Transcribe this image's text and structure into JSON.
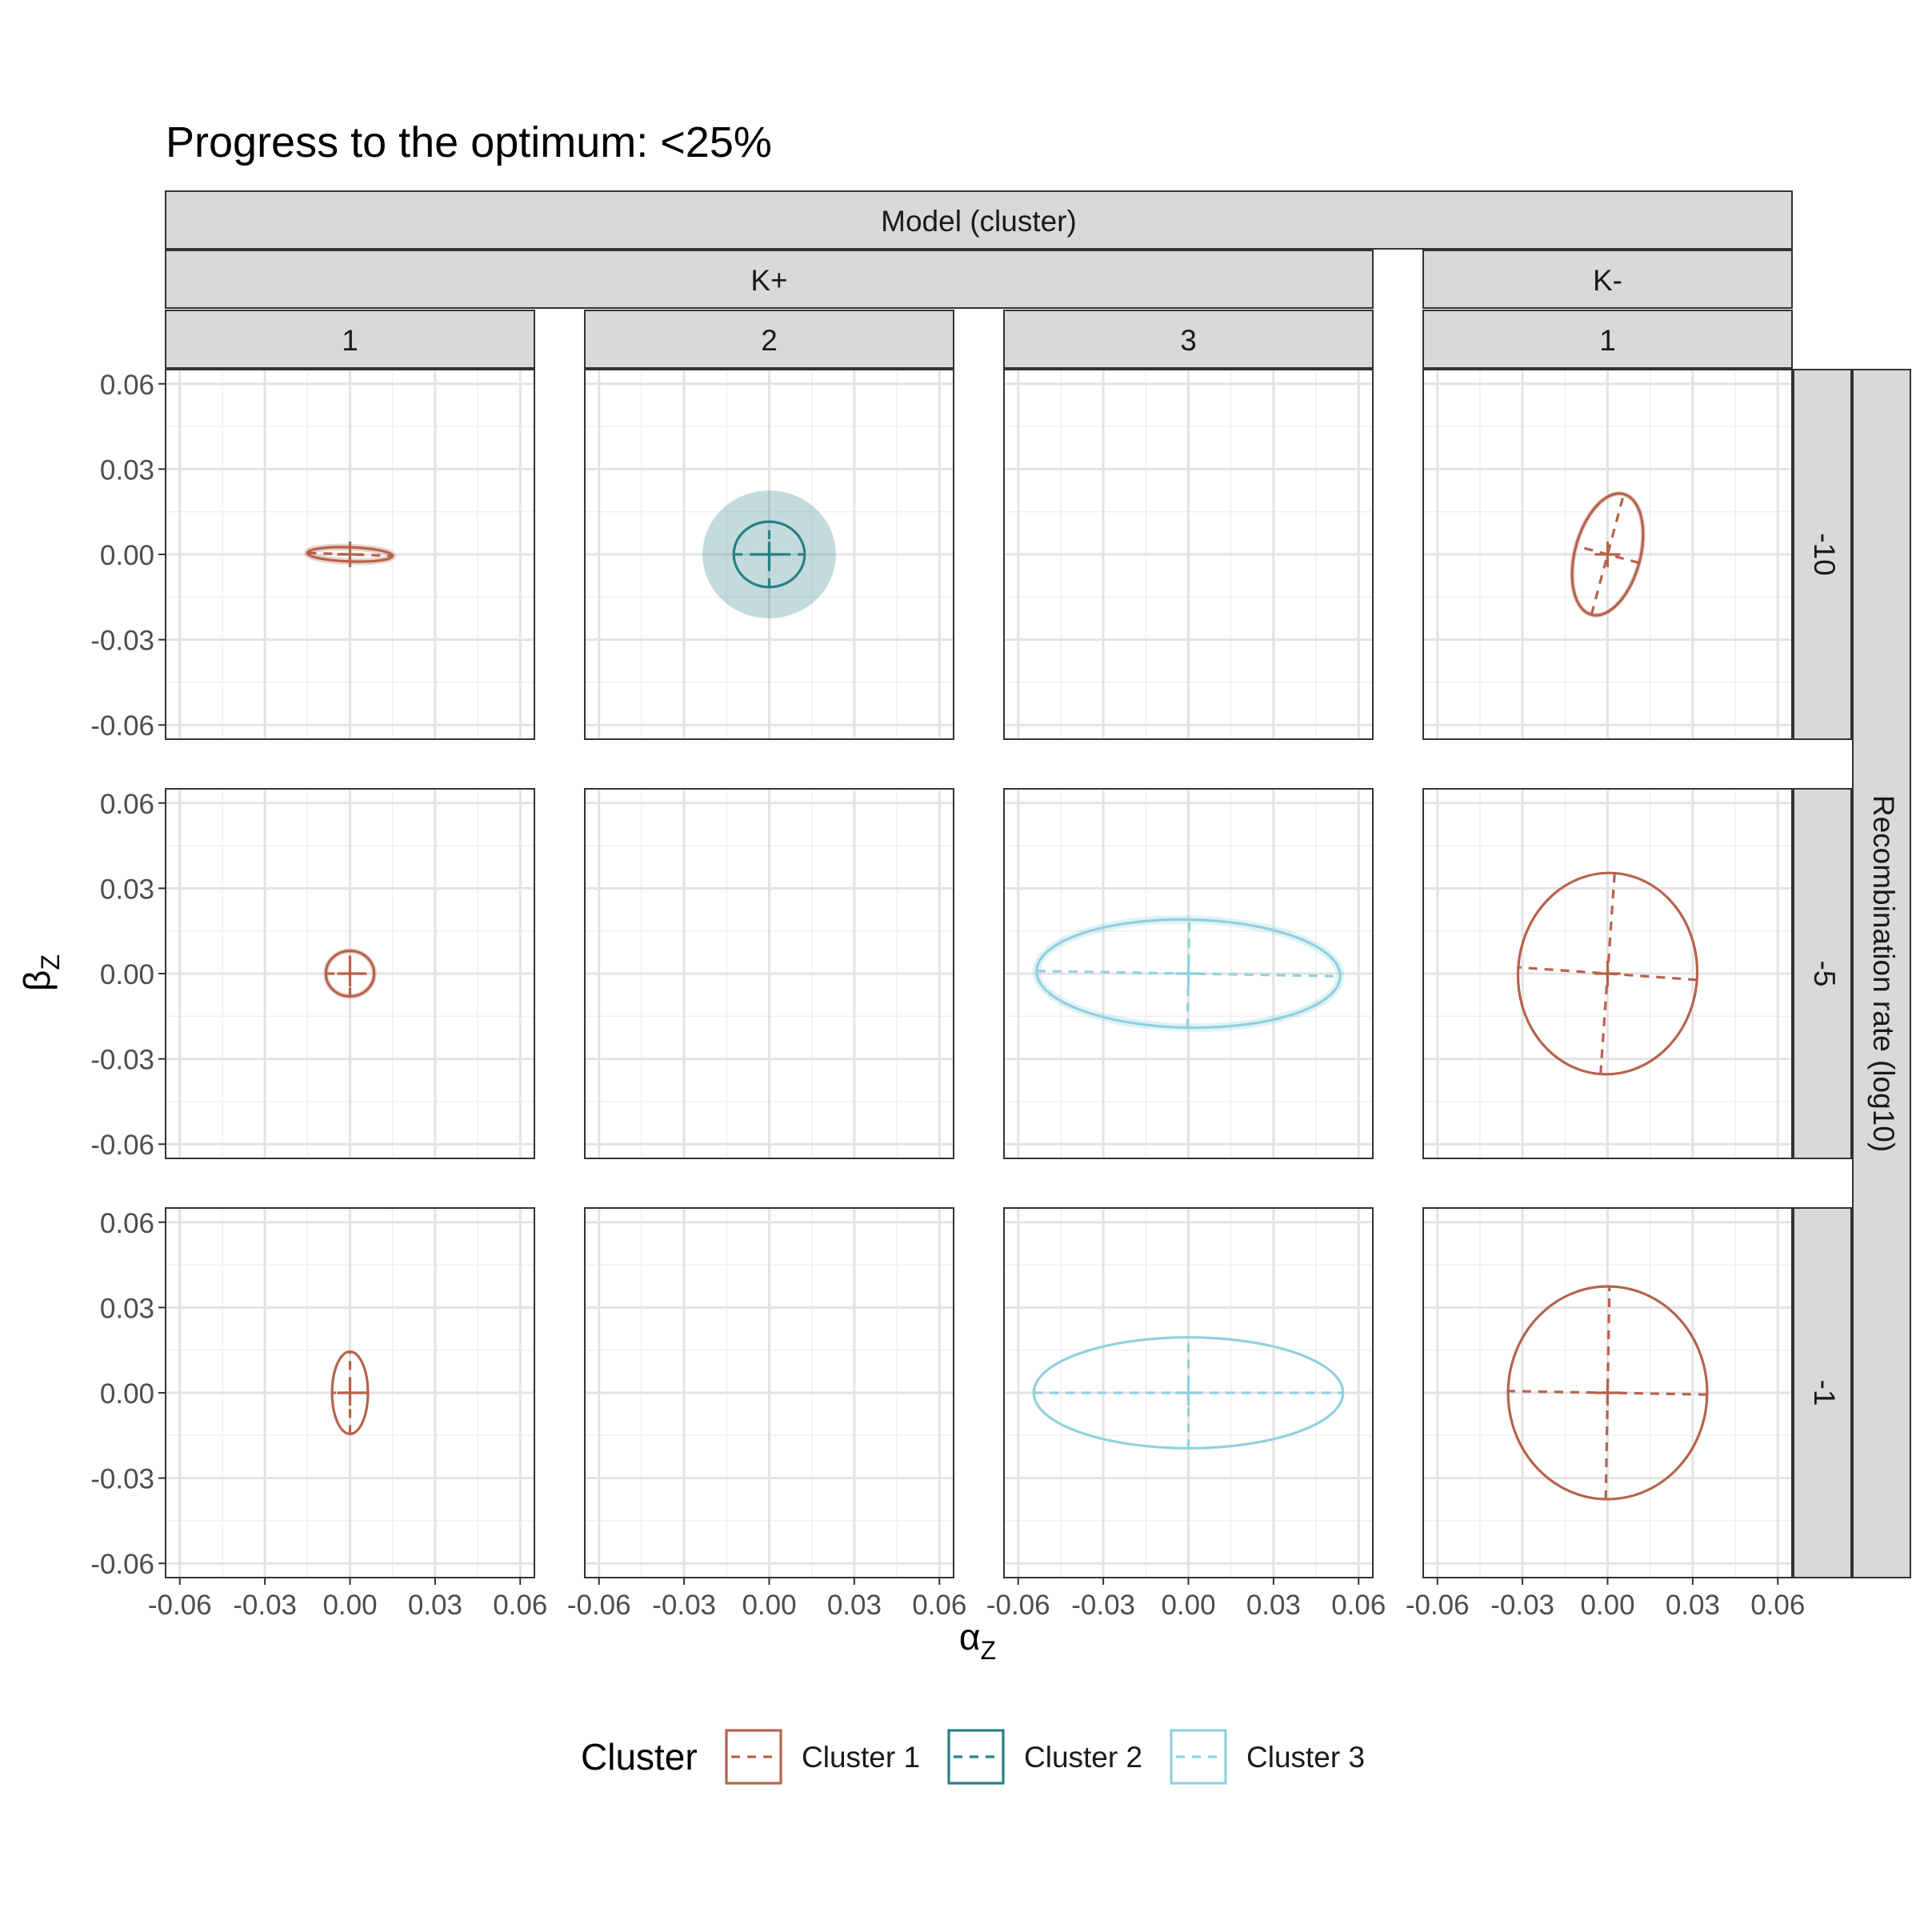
{
  "chart_data": {
    "type": "ellipse-facet",
    "title": "Progress to the optimum: <25%",
    "xlabel": "α",
    "xlabel_sub": "Z",
    "ylabel": "β",
    "ylabel_sub": "Z",
    "xlim": [
      -0.065,
      0.065
    ],
    "ylim": [
      -0.065,
      0.065
    ],
    "ticks": [
      -0.06,
      -0.03,
      0.0,
      0.03,
      0.06
    ],
    "tick_labels": [
      "-0.06",
      "-0.03",
      "0.00",
      "0.03",
      "0.06"
    ],
    "minor_ticks": [
      -0.045,
      -0.015,
      0.015,
      0.045
    ],
    "strip_top_label": "Model (cluster)",
    "model_groups": [
      {
        "label": "K+",
        "columns": [
          0,
          1,
          2
        ]
      },
      {
        "label": "K-",
        "columns": [
          3
        ]
      }
    ],
    "columns": [
      "1",
      "2",
      "3",
      "1"
    ],
    "strip_right_label": "Recombination rate (log10)",
    "rows": [
      "-10",
      "-5",
      "-1"
    ],
    "legend": {
      "title": "Cluster",
      "items": [
        {
          "label": "Cluster 1",
          "color": "#b5634b"
        },
        {
          "label": "Cluster 2",
          "color": "#2a7f85"
        },
        {
          "label": "Cluster 3",
          "color": "#8fd1dd"
        }
      ]
    },
    "ellipses": [
      {
        "row": 0,
        "col": 0,
        "cluster": 1,
        "cx": 0,
        "cy": 0,
        "a": 0.015,
        "b": 0.0025,
        "angle": -2,
        "band": 0.0012
      },
      {
        "row": 0,
        "col": 1,
        "cluster": 2,
        "cx": 0,
        "cy": 0,
        "a": 0.0125,
        "b": 0.0115,
        "angle": 0,
        "band": 0.011
      },
      {
        "row": 0,
        "col": 3,
        "cluster": 1,
        "cx": 0,
        "cy": 0,
        "a": 0.022,
        "b": 0.0115,
        "angle": 75,
        "band": 0.0006
      },
      {
        "row": 1,
        "col": 0,
        "cluster": 1,
        "cx": 0,
        "cy": 0,
        "a": 0.0085,
        "b": 0.008,
        "angle": 0,
        "band": 0.0009
      },
      {
        "row": 1,
        "col": 2,
        "cluster": 3,
        "cx": 0,
        "cy": 0,
        "a": 0.0535,
        "b": 0.019,
        "angle": -1,
        "band": 0.0015
      },
      {
        "row": 1,
        "col": 3,
        "cluster": 1,
        "cx": 0,
        "cy": 0,
        "a": 0.0355,
        "b": 0.0315,
        "angle": 86,
        "band": 0
      },
      {
        "row": 2,
        "col": 0,
        "cluster": 1,
        "cx": 0,
        "cy": 0,
        "a": 0.0145,
        "b": 0.0063,
        "angle": 90,
        "band": 0
      },
      {
        "row": 2,
        "col": 2,
        "cluster": 3,
        "cx": 0,
        "cy": 0,
        "a": 0.0545,
        "b": 0.0195,
        "angle": 0,
        "band": 0
      },
      {
        "row": 2,
        "col": 3,
        "cluster": 1,
        "cx": 0,
        "cy": 0,
        "a": 0.0375,
        "b": 0.035,
        "angle": 89,
        "band": 0
      }
    ]
  }
}
